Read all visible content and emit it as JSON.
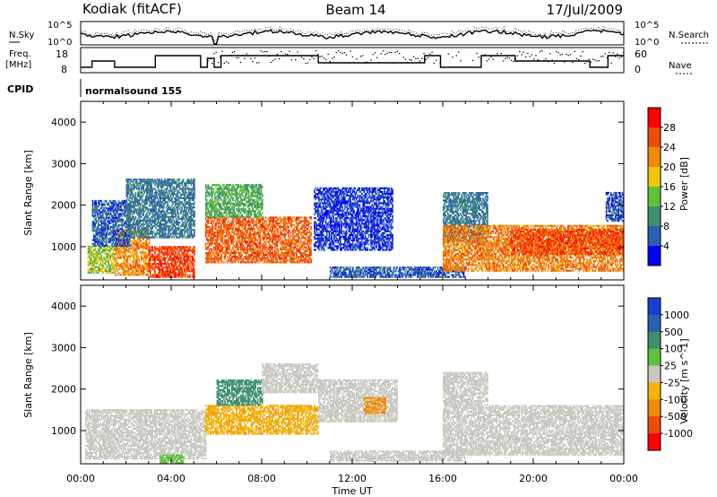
{
  "header": {
    "left": "Kodiak (fitACF)",
    "center": "Beam 14",
    "right": "17/Jul/2009"
  },
  "side_labels": {
    "nsky": "N.Sky",
    "nsearch": "N.Search",
    "freq_line1": "Freq.",
    "freq_line2": "[MHz]",
    "nave": "Nave",
    "cpid": "CPID"
  },
  "cpid_text": "normalsound 155",
  "noise_ticks": {
    "top": "10^5",
    "bottom": "10^0"
  },
  "freq_ticks": {
    "left": [
      "18",
      "8"
    ],
    "right": [
      "60",
      "0"
    ]
  },
  "colors": {
    "power": [
      "#0000ff",
      "#2a5fb0",
      "#3f8f6f",
      "#5fc13a",
      "#f2c60a",
      "#f08a0a",
      "#f04a0a",
      "#ff0000"
    ],
    "velocity": [
      "#ff0000",
      "#f04a0a",
      "#f08a0a",
      "#f2b30a",
      "#c8c8c0",
      "#5fc13a",
      "#3f8f6f",
      "#2a5fb0",
      "#1a3fd0"
    ]
  },
  "chart_data": [
    {
      "type": "heatmap",
      "name": "power",
      "xlabel": "",
      "ylabel": "Slant Range [km]",
      "ylim": [
        200,
        4500
      ],
      "xlim": [
        0,
        24
      ],
      "x_ticks": [
        "00:00",
        "04:00",
        "08:00",
        "12:00",
        "16:00",
        "20:00",
        "00:00"
      ],
      "y_ticks": [
        1000,
        2000,
        3000,
        4000
      ],
      "colorbar": {
        "label": "Power [dB]",
        "ticks": [
          "4",
          "8",
          "12",
          "16",
          "20",
          "24",
          "28"
        ],
        "range": [
          0,
          32
        ]
      },
      "regions": [
        {
          "t0": 0.3,
          "t1": 1.5,
          "r0": 350,
          "r1": 1000,
          "value": 15
        },
        {
          "t0": 1.5,
          "t1": 3.0,
          "r0": 300,
          "r1": 1400,
          "value": 22
        },
        {
          "t0": 3.0,
          "t1": 5.0,
          "r0": 250,
          "r1": 1000,
          "value": 27
        },
        {
          "t0": 5.5,
          "t1": 10.2,
          "r0": 600,
          "r1": 1700,
          "value": 25
        },
        {
          "t0": 0.5,
          "t1": 2.2,
          "r0": 1000,
          "r1": 2100,
          "value": 6
        },
        {
          "t0": 2.0,
          "t1": 5.0,
          "r0": 1200,
          "r1": 2600,
          "value": 8
        },
        {
          "t0": 5.5,
          "t1": 8.0,
          "r0": 1700,
          "r1": 2500,
          "value": 12
        },
        {
          "t0": 10.3,
          "t1": 13.8,
          "r0": 900,
          "r1": 2400,
          "value": 4
        },
        {
          "t0": 11.0,
          "t1": 17.0,
          "r0": 250,
          "r1": 500,
          "value": 6
        },
        {
          "t0": 16.0,
          "t1": 18.0,
          "r0": 1100,
          "r1": 2300,
          "value": 8
        },
        {
          "t0": 16.0,
          "t1": 24.0,
          "r0": 400,
          "r1": 1500,
          "value": 23
        },
        {
          "t0": 19.0,
          "t1": 24.0,
          "r0": 800,
          "r1": 1400,
          "value": 26
        },
        {
          "t0": 23.2,
          "t1": 24.0,
          "r0": 1600,
          "r1": 2300,
          "value": 5
        }
      ]
    },
    {
      "type": "heatmap",
      "name": "velocity",
      "xlabel": "Time UT",
      "ylabel": "Slant Range [km]",
      "ylim": [
        200,
        4500
      ],
      "xlim": [
        0,
        24
      ],
      "x_ticks": [
        "00:00",
        "04:00",
        "08:00",
        "12:00",
        "16:00",
        "20:00",
        "00:00"
      ],
      "y_ticks": [
        1000,
        2000,
        3000,
        4000
      ],
      "colorbar": {
        "label": "Velocity [m s^-1]",
        "ticks": [
          "1000",
          "500",
          "100",
          "25",
          "-25",
          "-100",
          "-500",
          "-1000"
        ]
      },
      "regions": [
        {
          "t0": 0.2,
          "t1": 5.5,
          "r0": 300,
          "r1": 1500,
          "value": 0
        },
        {
          "t0": 3.5,
          "t1": 4.5,
          "r0": 200,
          "r1": 400,
          "value": 60
        },
        {
          "t0": 5.5,
          "t1": 10.5,
          "r0": 900,
          "r1": 1600,
          "value": -80
        },
        {
          "t0": 6.0,
          "t1": 8.0,
          "r0": 1600,
          "r1": 2200,
          "value": 300
        },
        {
          "t0": 8.0,
          "t1": 10.5,
          "r0": 1900,
          "r1": 2600,
          "value": 0
        },
        {
          "t0": 10.5,
          "t1": 14.0,
          "r0": 1200,
          "r1": 2200,
          "value": 0
        },
        {
          "t0": 11.0,
          "t1": 17.0,
          "r0": 250,
          "r1": 500,
          "value": 0
        },
        {
          "t0": 16.0,
          "t1": 24.0,
          "r0": 400,
          "r1": 1600,
          "value": 0
        },
        {
          "t0": 16.0,
          "t1": 18.0,
          "r0": 1600,
          "r1": 2400,
          "value": 0
        },
        {
          "t0": 12.5,
          "t1": 13.5,
          "r0": 1400,
          "r1": 1800,
          "value": -150
        }
      ]
    }
  ]
}
